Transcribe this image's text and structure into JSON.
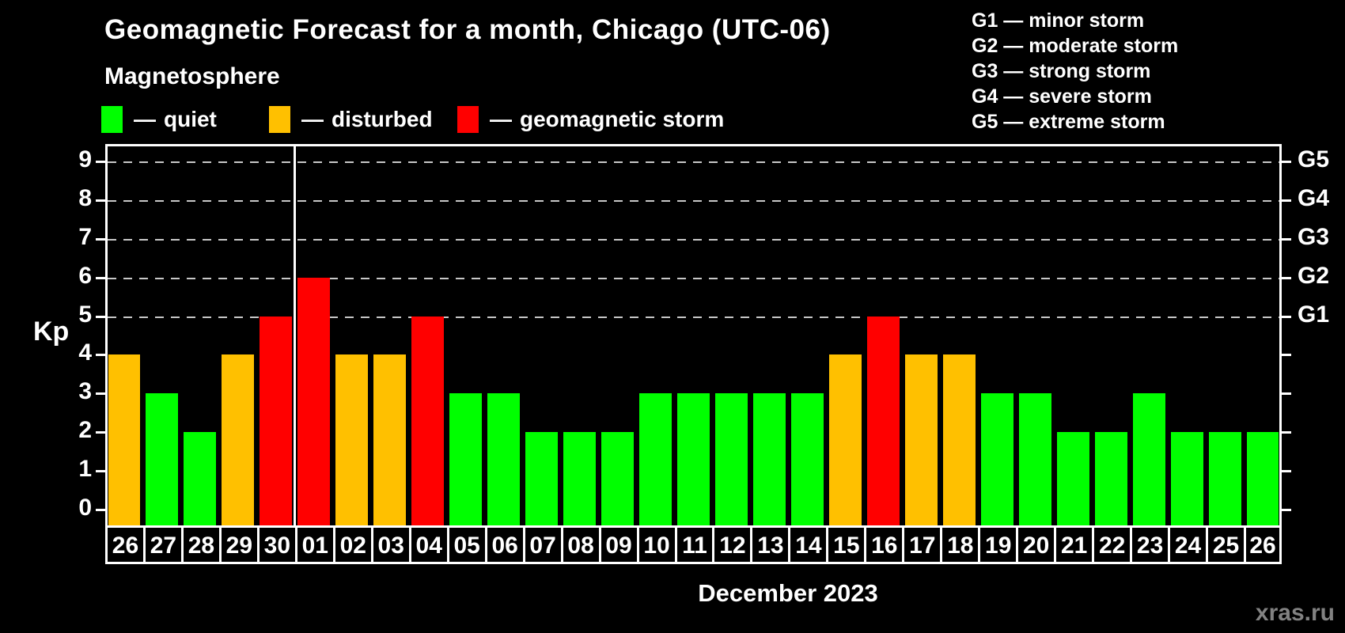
{
  "title": "Geomagnetic Forecast for a month, Chicago (UTC-06)",
  "subtitle": "Magnetosphere",
  "dash": "—",
  "legend": [
    {
      "status": "quiet",
      "label": "quiet",
      "color": "#00ff00"
    },
    {
      "status": "disturbed",
      "label": "disturbed",
      "color": "#ffc000"
    },
    {
      "status": "storm",
      "label": "geomagnetic storm",
      "color": "#ff0000"
    }
  ],
  "g_legend": [
    {
      "code": "G1",
      "desc": "minor storm"
    },
    {
      "code": "G2",
      "desc": "moderate storm"
    },
    {
      "code": "G3",
      "desc": "strong storm"
    },
    {
      "code": "G4",
      "desc": "severe storm"
    },
    {
      "code": "G5",
      "desc": "extreme storm"
    }
  ],
  "watermark": "xras.ru",
  "chart_data": {
    "type": "bar",
    "title": "Geomagnetic Forecast for a month, Chicago (UTC-06)",
    "xlabel": "December 2023",
    "ylabel": "Kp",
    "ylim": [
      0,
      9
    ],
    "y_ticks": [
      0,
      1,
      2,
      3,
      4,
      5,
      6,
      7,
      8,
      9
    ],
    "gridlines_at_kp": [
      5,
      6,
      7,
      8,
      9
    ],
    "right_axis_labels": [
      {
        "kp": 5,
        "label": "G1"
      },
      {
        "kp": 6,
        "label": "G2"
      },
      {
        "kp": 7,
        "label": "G3"
      },
      {
        "kp": 8,
        "label": "G4"
      },
      {
        "kp": 9,
        "label": "G5"
      }
    ],
    "month_divider_before_index": 5,
    "status_colors": {
      "quiet": "#00ff00",
      "disturbed": "#ffc000",
      "storm": "#ff0000"
    },
    "days": [
      {
        "day": "26",
        "kp": 4,
        "status": "disturbed"
      },
      {
        "day": "27",
        "kp": 3,
        "status": "quiet"
      },
      {
        "day": "28",
        "kp": 2,
        "status": "quiet"
      },
      {
        "day": "29",
        "kp": 4,
        "status": "disturbed"
      },
      {
        "day": "30",
        "kp": 5,
        "status": "storm"
      },
      {
        "day": "01",
        "kp": 6,
        "status": "storm"
      },
      {
        "day": "02",
        "kp": 4,
        "status": "disturbed"
      },
      {
        "day": "03",
        "kp": 4,
        "status": "disturbed"
      },
      {
        "day": "04",
        "kp": 5,
        "status": "storm"
      },
      {
        "day": "05",
        "kp": 3,
        "status": "quiet"
      },
      {
        "day": "06",
        "kp": 3,
        "status": "quiet"
      },
      {
        "day": "07",
        "kp": 2,
        "status": "quiet"
      },
      {
        "day": "08",
        "kp": 2,
        "status": "quiet"
      },
      {
        "day": "09",
        "kp": 2,
        "status": "quiet"
      },
      {
        "day": "10",
        "kp": 3,
        "status": "quiet"
      },
      {
        "day": "11",
        "kp": 3,
        "status": "quiet"
      },
      {
        "day": "12",
        "kp": 3,
        "status": "quiet"
      },
      {
        "day": "13",
        "kp": 3,
        "status": "quiet"
      },
      {
        "day": "14",
        "kp": 3,
        "status": "quiet"
      },
      {
        "day": "15",
        "kp": 4,
        "status": "disturbed"
      },
      {
        "day": "16",
        "kp": 5,
        "status": "storm"
      },
      {
        "day": "17",
        "kp": 4,
        "status": "disturbed"
      },
      {
        "day": "18",
        "kp": 4,
        "status": "disturbed"
      },
      {
        "day": "19",
        "kp": 3,
        "status": "quiet"
      },
      {
        "day": "20",
        "kp": 3,
        "status": "quiet"
      },
      {
        "day": "21",
        "kp": 2,
        "status": "quiet"
      },
      {
        "day": "22",
        "kp": 2,
        "status": "quiet"
      },
      {
        "day": "23",
        "kp": 3,
        "status": "quiet"
      },
      {
        "day": "24",
        "kp": 2,
        "status": "quiet"
      },
      {
        "day": "25",
        "kp": 2,
        "status": "quiet"
      },
      {
        "day": "26",
        "kp": 2,
        "status": "quiet"
      }
    ]
  }
}
